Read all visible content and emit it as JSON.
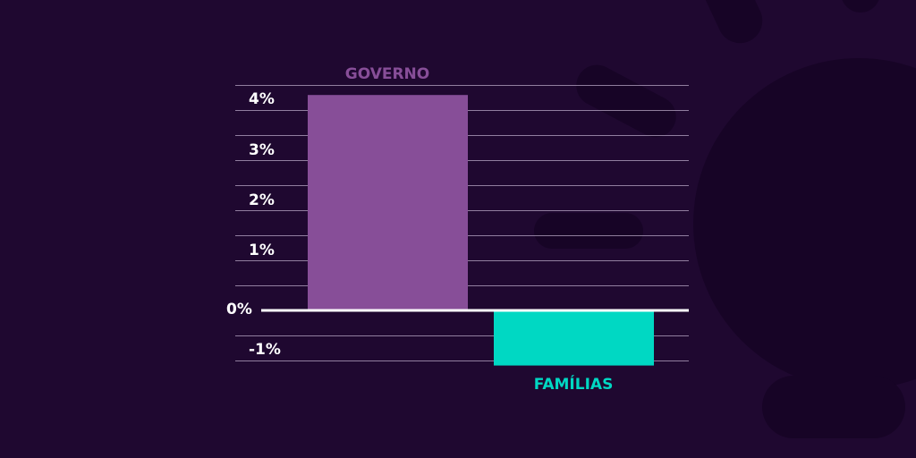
{
  "colors": {
    "background": "#1f0830",
    "governo": "#874e98",
    "familias": "#00d8c3",
    "grid": "#b7a6c4",
    "zero_line": "#ffffff",
    "tick_text": "#ffffff"
  },
  "chart_data": {
    "type": "bar",
    "title": "",
    "xlabel": "",
    "ylabel": "",
    "categories": [
      "GOVERNO",
      "FAMÍLIAS"
    ],
    "values": [
      4.3,
      -1.1
    ],
    "ylim": [
      -1,
      4
    ],
    "y_ticks": [
      4,
      3,
      2,
      1,
      0,
      -1
    ],
    "y_tick_labels": [
      "4%",
      "3%",
      "2%",
      "1%",
      "0%",
      "-1%"
    ],
    "grid": true,
    "legend": "none"
  }
}
